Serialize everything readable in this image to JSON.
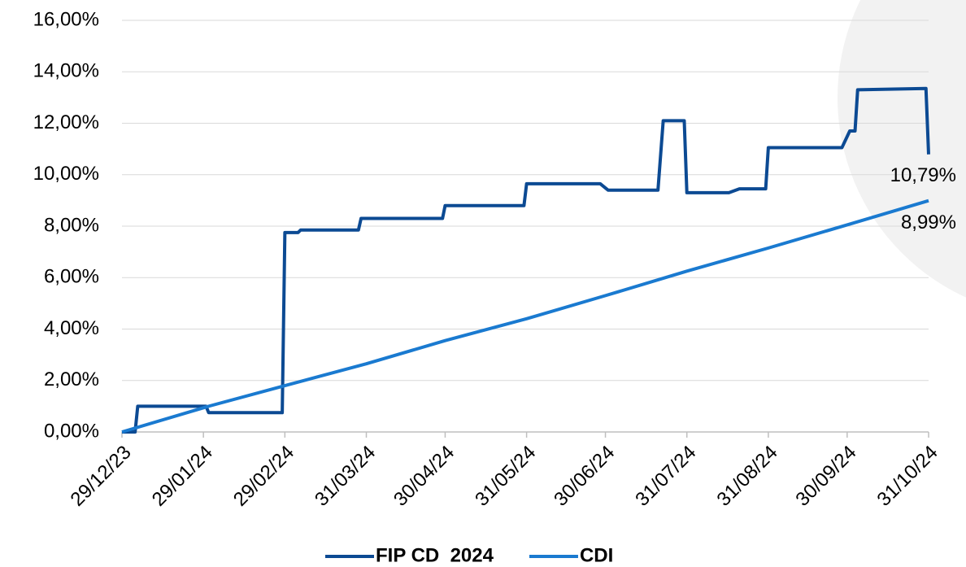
{
  "chart_data": {
    "type": "line",
    "xlim": [
      "29/12/23",
      "31/10/24"
    ],
    "xticks": [
      "29/12/23",
      "29/01/24",
      "29/02/24",
      "31/03/24",
      "30/04/24",
      "31/05/24",
      "30/06/24",
      "31/07/24",
      "31/08/24",
      "30/09/24",
      "31/10/24"
    ],
    "ylim": [
      0,
      16
    ],
    "yticks": [
      {
        "value": 0,
        "label": "0,00%"
      },
      {
        "value": 2,
        "label": "2,00%"
      },
      {
        "value": 4,
        "label": "4,00%"
      },
      {
        "value": 6,
        "label": "6,00%"
      },
      {
        "value": 8,
        "label": "8,00%"
      },
      {
        "value": 10,
        "label": "10,00%"
      },
      {
        "value": 12,
        "label": "12,00%"
      },
      {
        "value": 14,
        "label": "14,00%"
      },
      {
        "value": 16,
        "label": "16,00%"
      }
    ],
    "grid": true,
    "legend": "bottom",
    "series": [
      {
        "name": "FIP CD  2024",
        "color": "#0c4a93",
        "x": [
          "29/12/23",
          "03/01/24",
          "04/01/24",
          "30/01/24",
          "31/01/24",
          "28/02/24",
          "29/02/24",
          "05/03/24",
          "06/03/24",
          "28/03/24",
          "29/03/24",
          "29/04/24",
          "30/04/24",
          "30/05/24",
          "31/05/24",
          "28/06/24",
          "01/07/24",
          "20/07/24",
          "22/07/24",
          "30/07/24",
          "31/07/24",
          "16/08/24",
          "20/08/24",
          "30/08/24",
          "31/08/24",
          "28/09/24",
          "01/10/24",
          "03/10/24",
          "04/10/24",
          "30/10/24",
          "31/10/24"
        ],
        "values": [
          0,
          0,
          1.0,
          1.0,
          0.75,
          0.75,
          7.75,
          7.75,
          7.85,
          7.85,
          8.3,
          8.3,
          8.8,
          8.8,
          9.65,
          9.65,
          9.4,
          9.4,
          12.1,
          12.1,
          9.3,
          9.3,
          9.45,
          9.45,
          11.05,
          11.05,
          11.7,
          11.7,
          13.3,
          13.35,
          10.79
        ],
        "value_labels": [
          null,
          null,
          null,
          null,
          null,
          null,
          null,
          null,
          null,
          null,
          null,
          null,
          null,
          null,
          null,
          null,
          null,
          null,
          null,
          null,
          null,
          null,
          null,
          null,
          null,
          null,
          null,
          null,
          null,
          null,
          "10,79%"
        ]
      },
      {
        "name": "CDI",
        "color": "#1a7ad0",
        "x": [
          "29/12/23",
          "31/01/24",
          "29/02/24",
          "31/03/24",
          "30/04/24",
          "31/05/24",
          "30/06/24",
          "31/07/24",
          "31/08/24",
          "30/09/24",
          "31/10/24"
        ],
        "values": [
          0,
          1.0,
          1.8,
          2.65,
          3.55,
          4.4,
          5.3,
          6.25,
          7.15,
          8.05,
          8.99
        ],
        "value_labels": [
          null,
          null,
          null,
          null,
          null,
          null,
          null,
          null,
          null,
          null,
          "8,99%"
        ]
      }
    ]
  }
}
